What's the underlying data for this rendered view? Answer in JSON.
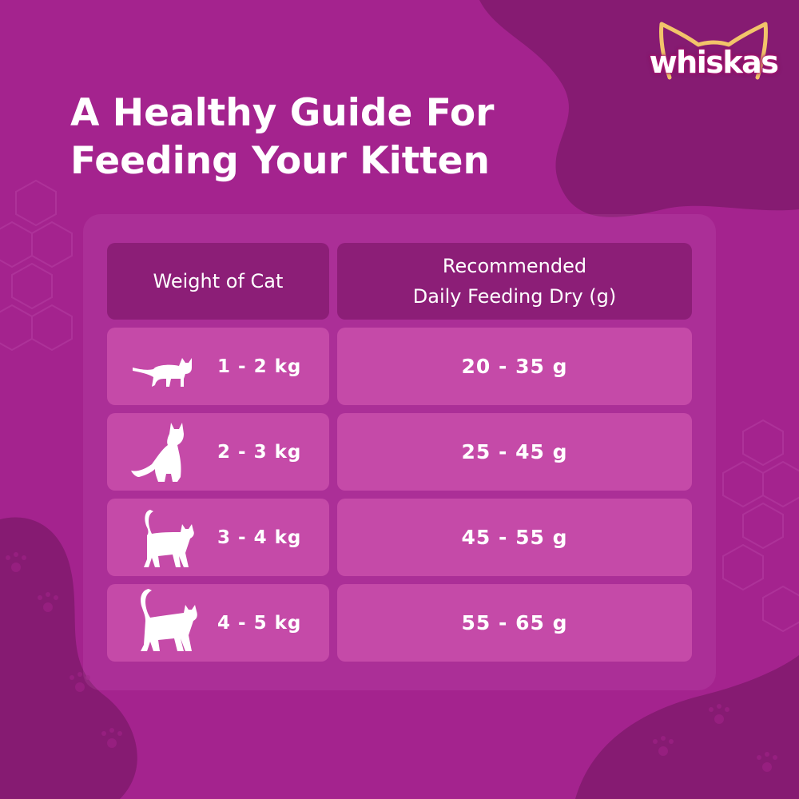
{
  "brand": {
    "logo_text": "whiskas",
    "background_color": "#a4238e",
    "dark_shape_color": "#861b72",
    "header_cell_color": "#8c1e77",
    "row_cell_color": "#c54aa8"
  },
  "title": {
    "line1": "A Healthy Guide For",
    "line2": "Feeding Your Kitten"
  },
  "table": {
    "header_weight": "Weight of Cat",
    "header_feeding_line1": "Recommended",
    "header_feeding_line2": "Daily Feeding Dry (g)",
    "rows": [
      {
        "icon": "cat-small-walking-icon",
        "weight": "1 - 2 kg",
        "amount": "20 - 35 g"
      },
      {
        "icon": "cat-sitting-icon",
        "weight": "2 - 3 kg",
        "amount": "25 - 45 g"
      },
      {
        "icon": "cat-standing-tail-up-icon",
        "weight": "3 - 4 kg",
        "amount": "45 - 55 g"
      },
      {
        "icon": "cat-large-tail-up-icon",
        "weight": "4 - 5 kg",
        "amount": "55 - 65 g"
      }
    ]
  }
}
